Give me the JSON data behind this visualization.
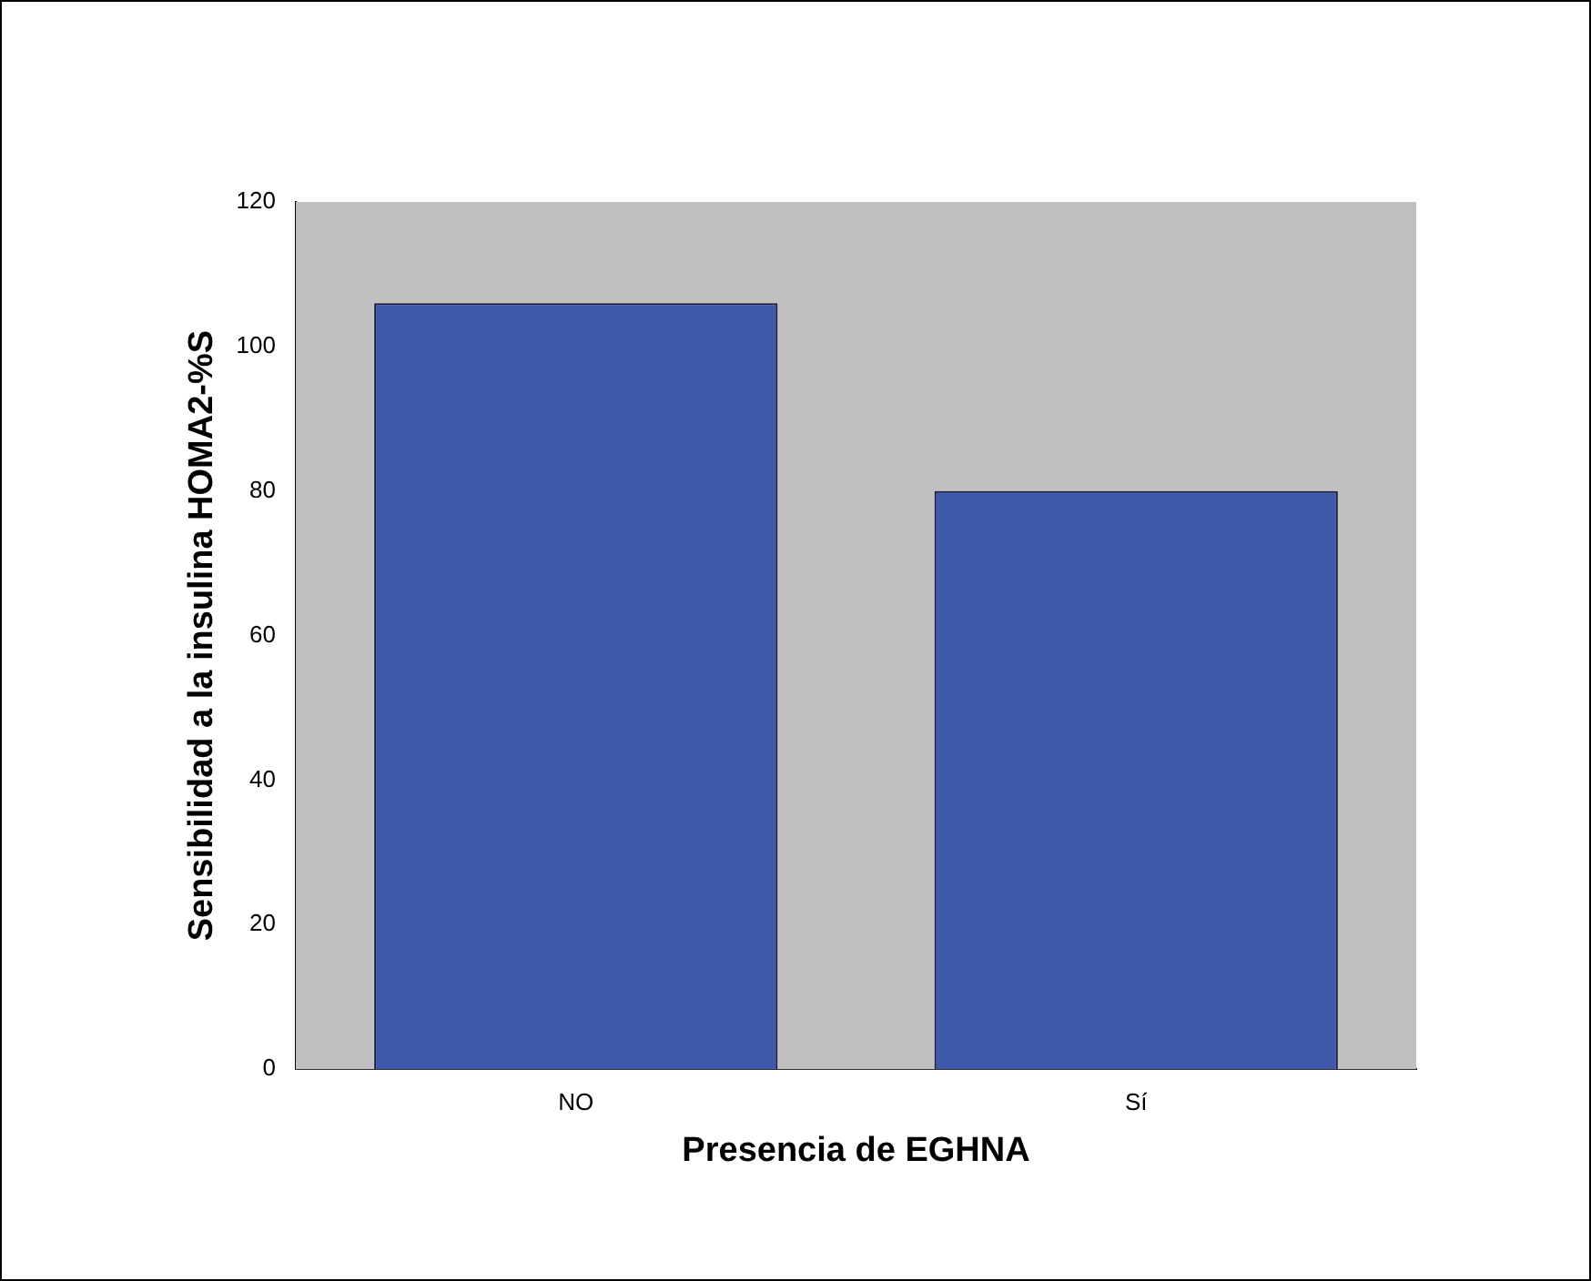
{
  "chart_data": {
    "type": "bar",
    "xlabel": "Presencia de EGHNA",
    "ylabel": "Sensibilidad a la insulina HOMA2-%S",
    "categories": [
      "NO",
      "Sí"
    ],
    "values": [
      106,
      80
    ],
    "color": "#3f59aa",
    "ylim": [
      0,
      120
    ],
    "yticks": [
      0,
      20,
      40,
      60,
      80,
      100,
      120
    ],
    "grid": false,
    "legend": false
  }
}
